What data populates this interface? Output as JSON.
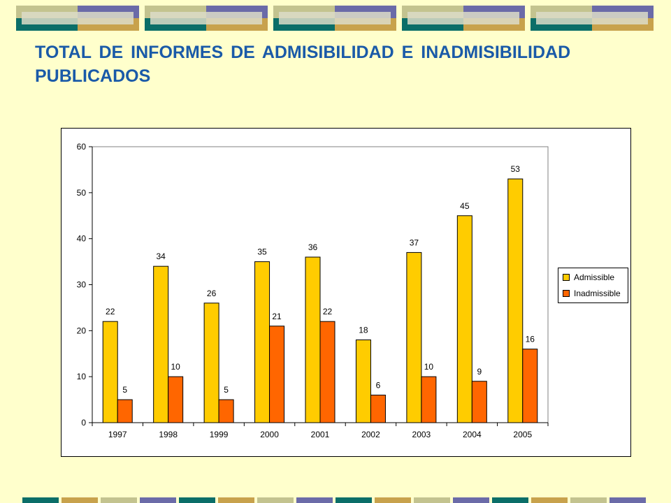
{
  "title": "TOTAL DE INFORMES DE ADMISIBILIDAD E INADMISIBILIDAD PUBLICADOS",
  "colors": {
    "background": "#FFFFCC",
    "title": "#1A5AA8",
    "admissible": "#FFCC00",
    "inadmissible": "#FF6600"
  },
  "chart_data": {
    "type": "bar",
    "categories": [
      "1997",
      "1998",
      "1999",
      "2000",
      "2001",
      "2002",
      "2003",
      "2004",
      "2005"
    ],
    "series": [
      {
        "name": "Admissible",
        "values": [
          22,
          34,
          26,
          35,
          36,
          18,
          37,
          45,
          53
        ]
      },
      {
        "name": "Inadmissible",
        "values": [
          5,
          10,
          5,
          21,
          22,
          6,
          10,
          9,
          16
        ]
      }
    ],
    "ylim": [
      0,
      60
    ],
    "yticks": [
      "0",
      "10",
      "20",
      "30",
      "40",
      "50",
      "60"
    ],
    "xlabel": "",
    "ylabel": "",
    "grid": false,
    "legend_position": "right",
    "data_labels": true
  }
}
